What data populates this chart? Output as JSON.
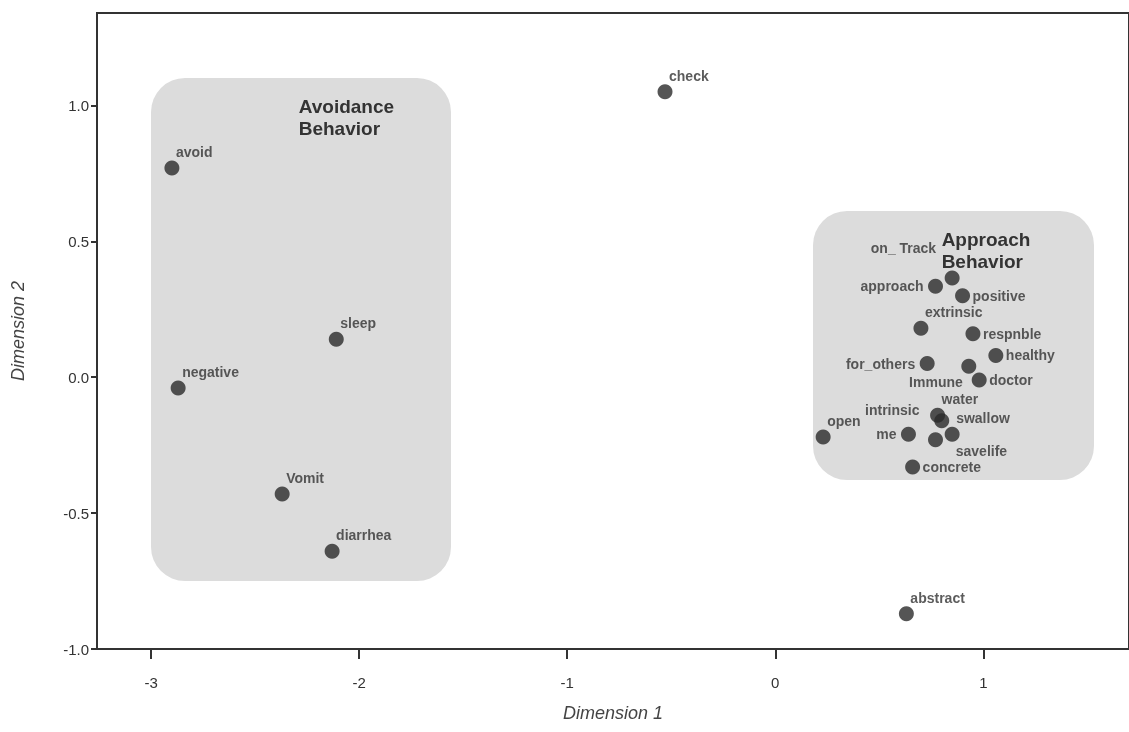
{
  "chart_data": {
    "type": "scatter",
    "xlabel": "Dimension 1",
    "ylabel": "Dimension 2",
    "marker": "circle",
    "grid": false,
    "series": [
      {
        "color": "#2b2b2b",
        "x": [
          -0.53,
          -2.9,
          -2.11,
          -2.87,
          -2.37,
          -2.13,
          0.63,
          0.77,
          0.85,
          0.9,
          0.7,
          0.95,
          1.06,
          0.73,
          0.93,
          0.98,
          0.78,
          0.8,
          0.23,
          0.64,
          0.77,
          0.85,
          0.66
        ],
        "values": [
          1.05,
          0.77,
          0.14,
          -0.04,
          -0.43,
          -0.64,
          -0.87,
          0.335,
          0.365,
          0.3,
          0.18,
          0.16,
          0.08,
          0.05,
          0.04,
          -0.01,
          -0.14,
          -0.16,
          -0.22,
          -0.21,
          -0.23,
          -0.21,
          -0.33
        ]
      }
    ],
    "xlim": [
      -3.26,
      1.7
    ],
    "xticks": [
      -3,
      -2,
      -1,
      0,
      1
    ],
    "ylim": [
      -1.0,
      1.34
    ],
    "yticks": [
      {
        "value": -1,
        "label": "-1.0"
      },
      {
        "value": -0.5,
        "label": "-0.5"
      },
      {
        "value": 0,
        "label": "0.0"
      },
      {
        "value": 0.5,
        "label": "0.5"
      },
      {
        "value": 1,
        "label": "1.0"
      }
    ],
    "annotations": [
      "Avoidance Behavior",
      "Approach Behavior",
      {
        "text": "check",
        "x": -0.53,
        "y": 1.05
      },
      {
        "text": "avoid",
        "x": -2.9,
        "y": 0.77
      },
      {
        "text": "sleep",
        "x": -2.11,
        "y": 0.14
      },
      {
        "text": "negative",
        "x": -2.87,
        "y": -0.04
      },
      {
        "text": "Vomit",
        "x": -2.37,
        "y": -0.43
      },
      {
        "text": "diarrhea",
        "x": -2.13,
        "y": -0.64
      },
      {
        "text": "abstract",
        "x": 0.63,
        "y": -0.87
      },
      {
        "text": "approach",
        "x": 0.77,
        "y": 0.335
      },
      {
        "text": "on_ Track",
        "x": 0.85,
        "y": 0.365
      },
      {
        "text": "positive",
        "x": 0.9,
        "y": 0.3
      },
      {
        "text": "extrinsic",
        "x": 0.7,
        "y": 0.18
      },
      {
        "text": "respnble",
        "x": 0.95,
        "y": 0.16
      },
      {
        "text": "healthy",
        "x": 1.06,
        "y": 0.08
      },
      {
        "text": "for_others",
        "x": 0.73,
        "y": 0.05
      },
      {
        "text": "Immune",
        "x": 0.93,
        "y": 0.04
      },
      {
        "text": "doctor",
        "x": 0.98,
        "y": -0.01
      },
      {
        "text": "water",
        "x": 0.78,
        "y": -0.14
      },
      {
        "text": "savelife",
        "x": 0.8,
        "y": -0.16
      },
      {
        "text": "open",
        "x": 0.23,
        "y": -0.22
      },
      {
        "text": "me",
        "x": 0.64,
        "y": -0.21
      },
      {
        "text": "intrinsic",
        "x": 0.77,
        "y": -0.23
      },
      {
        "text": "swallow",
        "x": 0.85,
        "y": -0.21
      },
      {
        "text": "concrete",
        "x": 0.66,
        "y": -0.33
      }
    ]
  }
}
